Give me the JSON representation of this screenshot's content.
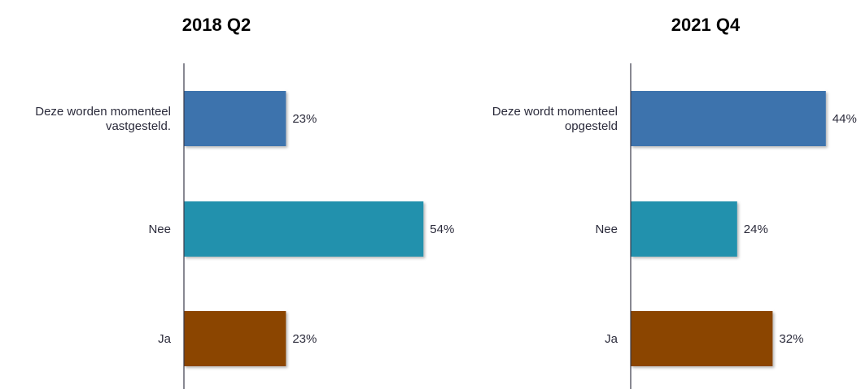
{
  "chart_data": [
    {
      "type": "bar",
      "orientation": "horizontal",
      "title": "2018 Q2",
      "categories": [
        "Deze worden momenteel vastgesteld.",
        "Nee",
        "Ja"
      ],
      "category_lines": [
        [
          "Deze worden momenteel",
          "vastgesteld."
        ],
        [
          "Nee"
        ],
        [
          "Ja"
        ]
      ],
      "values": [
        23,
        54,
        23
      ],
      "value_labels": [
        "23%",
        "54%",
        "23%"
      ],
      "colors": [
        "#3e73ad",
        "#2191ad",
        "#8b4506"
      ],
      "xlim": [
        0,
        100
      ],
      "grid": false,
      "legend": "none"
    },
    {
      "type": "bar",
      "orientation": "horizontal",
      "title": "2021 Q4",
      "categories": [
        "Deze wordt momenteel opgesteld",
        "Nee",
        "Ja"
      ],
      "category_lines": [
        [
          "Deze wordt momenteel",
          "opgesteld"
        ],
        [
          "Nee"
        ],
        [
          "Ja"
        ]
      ],
      "values": [
        44,
        24,
        32
      ],
      "value_labels": [
        "44%",
        "24%",
        "32%"
      ],
      "colors": [
        "#3e73ad",
        "#2191ad",
        "#8b4506"
      ],
      "xlim": [
        0,
        100
      ],
      "grid": false,
      "legend": "none"
    }
  ]
}
